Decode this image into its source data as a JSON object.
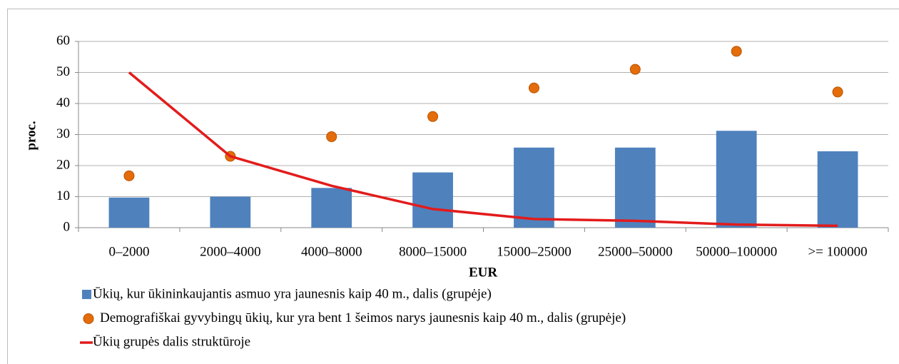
{
  "chart_data": {
    "type": "combo",
    "ylabel": "proc.",
    "xlabel": "EUR",
    "categories": [
      "0–2000",
      "2000–4000",
      "4000–8000",
      "8000–15000",
      "15000–25000",
      "25000–50000",
      "50000–100000",
      ">= 100000"
    ],
    "ylim": [
      0,
      60
    ],
    "yticks": [
      0,
      10,
      20,
      30,
      40,
      50,
      60
    ],
    "grid": true,
    "legend": "bottom",
    "series": [
      {
        "name": "Ūkių, kur ūkininkaujantis asmuo yra jaunesnis kaip 40 m., dalis (grupėje)",
        "type": "bar",
        "color": "#4f81bd",
        "values": [
          9.7,
          10,
          12.8,
          17.8,
          25.8,
          25.8,
          31.2,
          24.6
        ]
      },
      {
        "name": "Demografiškai gyvybingų ūkių, kur yra bent 1 šeimos narys jaunesnis kaip 40 m., dalis (grupėje)",
        "type": "scatter",
        "color": "#e46c0a",
        "values": [
          16.7,
          23,
          29.3,
          35.8,
          45,
          51,
          56.8,
          43.7
        ]
      },
      {
        "name": "Ūkių grupės dalis struktūroje",
        "type": "line",
        "color": "#e31b1b",
        "values": [
          50,
          23,
          13.5,
          6,
          2.8,
          2.2,
          1,
          0.6
        ]
      }
    ]
  }
}
